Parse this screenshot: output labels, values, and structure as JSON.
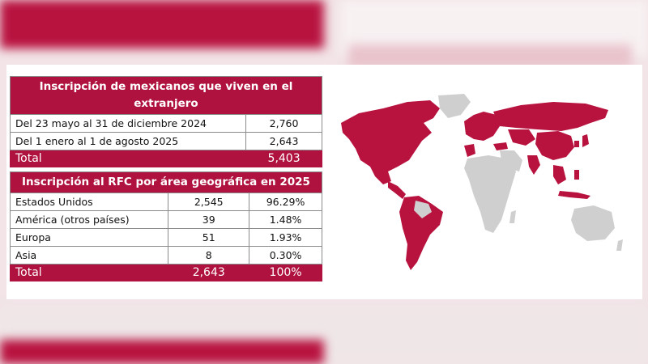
{
  "table1": {
    "title": "Inscripción de mexicanos que viven en el extranjero",
    "rows": [
      {
        "label": "Del 23 mayo al 31 de diciembre 2024",
        "value": "2,760"
      },
      {
        "label": "Del 1 enero al 1 de agosto 2025",
        "value": "2,643"
      }
    ],
    "total": {
      "label": "Total",
      "value": "5,403"
    }
  },
  "table2": {
    "title": "Inscripción al RFC por área geográfica en 2025",
    "rows": [
      {
        "region": "Estados Unidos",
        "count": "2,545",
        "percent": "96.29%"
      },
      {
        "region": "América (otros países)",
        "count": "39",
        "percent": "1.48%"
      },
      {
        "region": "Europa",
        "count": "51",
        "percent": "1.93%"
      },
      {
        "region": "Asia",
        "count": "8",
        "percent": "0.30%"
      }
    ],
    "total": {
      "label": "Total",
      "count": "2,643",
      "percent": "100%"
    }
  },
  "colors": {
    "accent": "#b0123f",
    "map_highlight": "#b8123f",
    "map_base": "#cfcfcf"
  }
}
